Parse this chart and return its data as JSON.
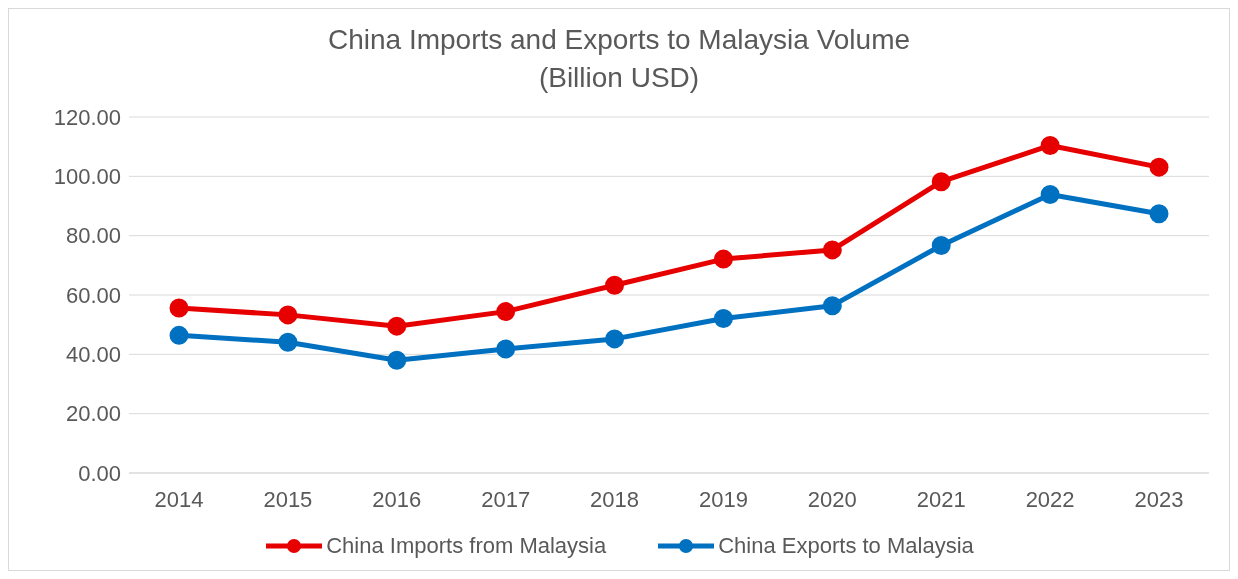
{
  "chart_data": {
    "type": "line",
    "title": "China Imports and Exports to Malaysia Volume\n(Billion USD)",
    "categories": [
      "2014",
      "2015",
      "2016",
      "2017",
      "2018",
      "2019",
      "2020",
      "2021",
      "2022",
      "2023"
    ],
    "series": [
      {
        "name": "China Imports from Malaysia",
        "color": "#e60000",
        "values": [
          55.6,
          53.3,
          49.5,
          54.4,
          63.3,
          72.1,
          75.2,
          98.2,
          110.4,
          103.1
        ]
      },
      {
        "name": "China Exports to Malaysia",
        "color": "#0070c0",
        "values": [
          46.4,
          44.1,
          38.0,
          41.8,
          45.2,
          52.1,
          56.4,
          76.7,
          93.9,
          87.4
        ]
      }
    ],
    "ylim": [
      0,
      120
    ],
    "yticks": [
      {
        "value": 0,
        "label": "0.00"
      },
      {
        "value": 20,
        "label": "20.00"
      },
      {
        "value": 40,
        "label": "40.00"
      },
      {
        "value": 60,
        "label": "60.00"
      },
      {
        "value": 80,
        "label": "80.00"
      },
      {
        "value": 100,
        "label": "100.00"
      },
      {
        "value": 120,
        "label": "120.00"
      }
    ],
    "grid": "y",
    "legend": "bottom",
    "marker": "circle",
    "line_style": "solid"
  }
}
